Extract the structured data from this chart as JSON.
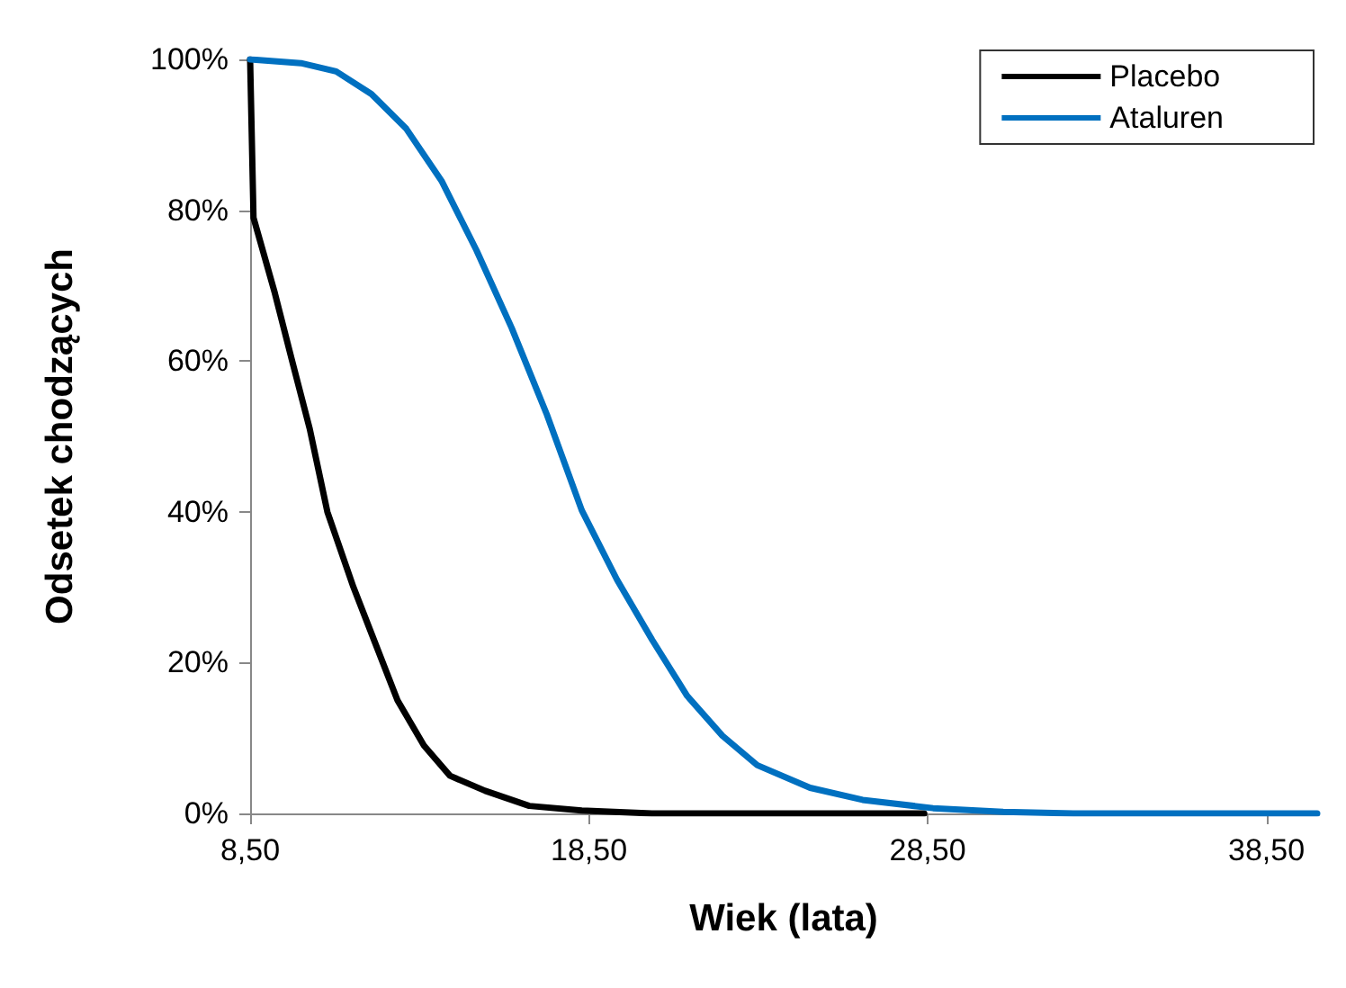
{
  "chart_data": {
    "type": "line",
    "xlabel": "Wiek (lata)",
    "ylabel": "Odsetek chodzących",
    "xlim": [
      8.5,
      40
    ],
    "ylim": [
      0,
      100
    ],
    "xticks": [
      {
        "value": 8.5,
        "label": "8,50"
      },
      {
        "value": 18.5,
        "label": "18,50"
      },
      {
        "value": 28.5,
        "label": "28,50"
      },
      {
        "value": 38.5,
        "label": "38,50"
      }
    ],
    "yticks": [
      {
        "value": 0,
        "label": "0%"
      },
      {
        "value": 20,
        "label": "20%"
      },
      {
        "value": 40,
        "label": "40%"
      },
      {
        "value": 60,
        "label": "60%"
      },
      {
        "value": 80,
        "label": "80%"
      },
      {
        "value": 100,
        "label": "100%"
      }
    ],
    "grid": false,
    "legend": "top right",
    "marker": "none",
    "line_style": "solid",
    "series": [
      {
        "name": "Placebo",
        "color": "#000000",
        "x": [
          8.5,
          8.6,
          9.23,
          9.74,
          10.26,
          10.78,
          11.55,
          12.07,
          12.85,
          13.63,
          14.4,
          15.44,
          16.74,
          18.29,
          20.36,
          28.4
        ],
        "values": [
          100,
          79,
          69,
          60,
          51,
          40,
          30,
          24,
          15,
          9,
          5,
          3,
          1,
          0.4,
          0,
          0
        ]
      },
      {
        "name": "Ataluren",
        "color": "#0070c0",
        "x": [
          8.5,
          10,
          11.04,
          12.08,
          13.11,
          14.15,
          15.18,
          16.22,
          17.26,
          18.29,
          19.33,
          20.37,
          21.4,
          22.44,
          23.47,
          25.03,
          26.58,
          28.66,
          30.73,
          32.8,
          40
        ],
        "values": [
          100,
          99.5,
          98.4,
          95.4,
          90.8,
          83.9,
          74.7,
          64.4,
          52.9,
          40.2,
          31,
          23,
          15.6,
          10.3,
          6.4,
          3.4,
          1.8,
          0.7,
          0.2,
          0,
          0
        ]
      }
    ]
  }
}
